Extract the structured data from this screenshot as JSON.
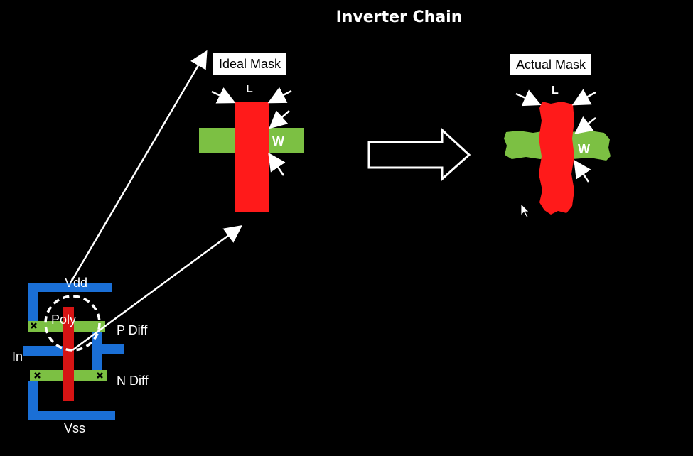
{
  "title": "Inverter Chain",
  "ideal_mask": {
    "label": "Ideal Mask",
    "length_label": "L",
    "width_label": "W"
  },
  "actual_mask": {
    "label": "Actual Mask",
    "length_label": "L",
    "width_label": "W"
  },
  "layout": {
    "vdd": "Vdd",
    "vss": "Vss",
    "in": "In",
    "poly": "Poly",
    "p_diff": "P Diff",
    "n_diff": "N Diff"
  },
  "colors": {
    "background": "#000000",
    "poly": "#ff1a1a",
    "diffusion": "#7cc043",
    "metal": "#1a6fd6",
    "text": "#ffffff"
  }
}
